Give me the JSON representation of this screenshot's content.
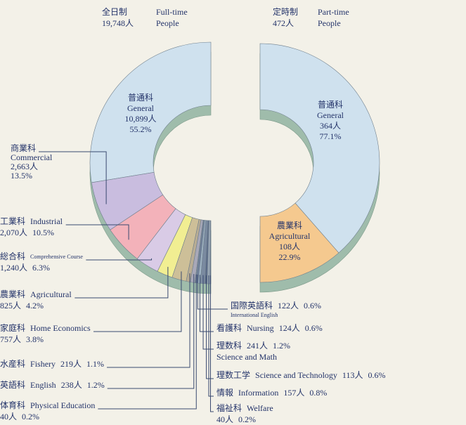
{
  "chart_data": [
    {
      "type": "donut",
      "half": "left",
      "title_ja": "全日制",
      "title": "Full-time",
      "subtitle": "19,748人",
      "subtitle_en": "People",
      "categories_ja": [
        "普通科",
        "商業科",
        "工業科",
        "総合科",
        "農業科",
        "家庭科",
        "水産科",
        "英語科",
        "体育科",
        "国際英語科",
        "看護科",
        "理数科",
        "理数工学",
        "情報",
        "福祉科"
      ],
      "categories": [
        "General",
        "Commercial",
        "Industrial",
        "Comprehensive Course",
        "Agricultural",
        "Home Economics",
        "Fishery",
        "English",
        "Physical Education",
        "International English",
        "Nursing",
        "Science and Math",
        "Science and Technology",
        "Information",
        "Welfare"
      ],
      "values": [
        10899,
        2663,
        2070,
        1240,
        825,
        757,
        219,
        238,
        40,
        122,
        124,
        241,
        113,
        157,
        40
      ],
      "value_labels": [
        "10,899人",
        "2,663人",
        "2,070人",
        "1,240人",
        "825人",
        "757人",
        "219人",
        "238人",
        "40人",
        "122人",
        "124人",
        "241人",
        "113人",
        "157人",
        "40人"
      ],
      "percent_labels": [
        "55.2%",
        "13.5%",
        "10.5%",
        "6.3%",
        "4.2%",
        "3.8%",
        "1.1%",
        "1.2%",
        "0.2%",
        "0.6%",
        "0.6%",
        "1.2%",
        "0.6%",
        "0.8%",
        "0.2%"
      ],
      "colors": [
        "#cfe1ee",
        "#c9bddf",
        "#f3b2ba",
        "#d9cbe6",
        "#f1ee92",
        "#cdbf98",
        "#b9ad94",
        "#a8a8b8",
        "#8e9aa8",
        "#6f7f9a",
        "#a0b4c4",
        "#7a8aa0",
        "#5a6a88",
        "#98a6b4",
        "#485a78"
      ]
    },
    {
      "type": "donut",
      "half": "right",
      "title_ja": "定時制",
      "title": "Part-time",
      "subtitle": "472人",
      "subtitle_en": "People",
      "categories_ja": [
        "普通科",
        "農業科"
      ],
      "categories": [
        "General",
        "Agricultural"
      ],
      "values": [
        364,
        108
      ],
      "value_labels": [
        "364人",
        "108人"
      ],
      "percent_labels": [
        "77.1%",
        "22.9%"
      ],
      "colors": [
        "#cfe1ee",
        "#f5c98f"
      ]
    }
  ]
}
